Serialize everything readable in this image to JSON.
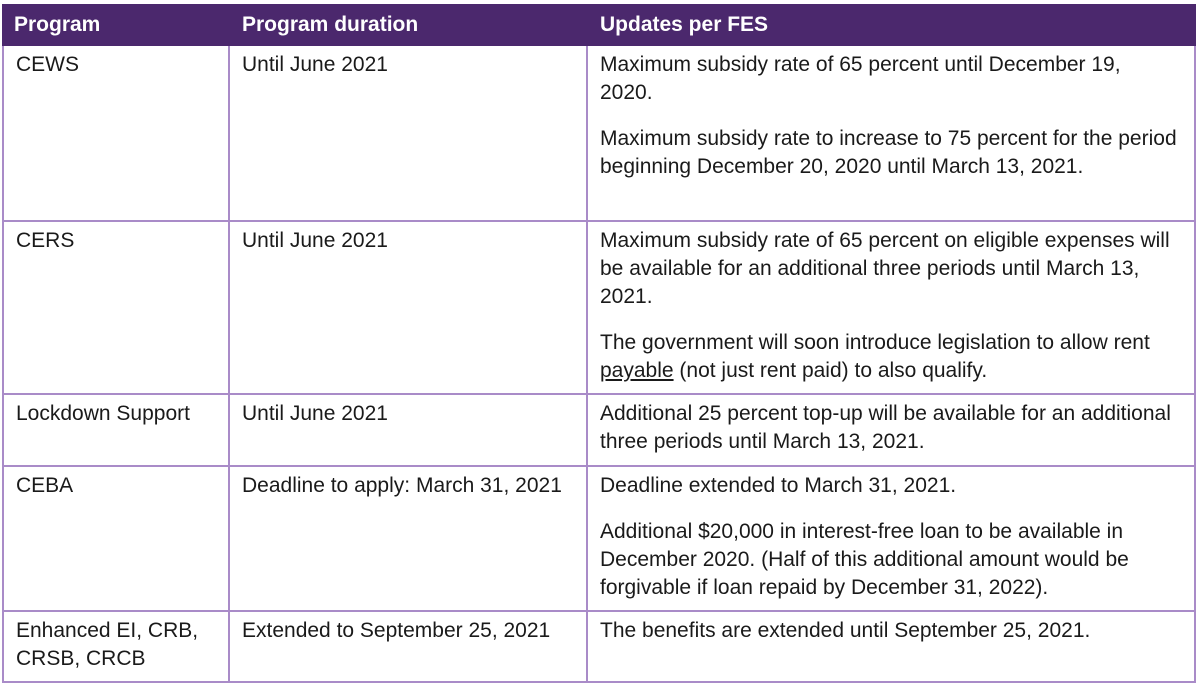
{
  "colors": {
    "header_bg": "#4B286D",
    "header_text": "#FFFFFF",
    "cell_border": "#A98BC8",
    "body_text": "#1A1A1A",
    "background": "#FFFFFF"
  },
  "table": {
    "columns": [
      {
        "label": "Program"
      },
      {
        "label": "Program duration"
      },
      {
        "label": "Updates per FES"
      }
    ],
    "rows": [
      {
        "program": "CEWS",
        "duration": "Until June 2021",
        "updates": [
          [
            {
              "text": "Maximum subsidy rate of 65 percent until December 19, 2020."
            }
          ],
          [
            {
              "text": "Maximum subsidy rate to increase to 75 percent for the period beginning December 20, 2020 until March 13, 2021."
            }
          ]
        ]
      },
      {
        "program": "CERS",
        "duration": "Until June 2021",
        "updates": [
          [
            {
              "text": "Maximum subsidy rate of 65 percent on eligible expenses will be available for an additional three periods until March 13, 2021."
            }
          ],
          [
            {
              "text": "The government will soon introduce legislation to allow rent "
            },
            {
              "text": "payable",
              "underline": true
            },
            {
              "text": " (not just rent paid) to also qualify."
            }
          ]
        ]
      },
      {
        "program": "Lockdown Support",
        "duration": "Until June 2021",
        "updates": [
          [
            {
              "text": "Additional 25 percent top-up will be available for an additional three periods until March 13, 2021."
            }
          ]
        ]
      },
      {
        "program": "CEBA",
        "duration": "Deadline to apply: March 31, 2021",
        "updates": [
          [
            {
              "text": "Deadline extended to March 31, 2021."
            }
          ],
          [
            {
              "text": "Additional $20,000 in interest-free loan to be available in December 2020. (Half of this additional amount would be forgivable if loan repaid by December 31, 2022)."
            }
          ]
        ]
      },
      {
        "program": "Enhanced EI, CRB, CRSB, CRCB",
        "duration": "Extended to September 25, 2021",
        "updates": [
          [
            {
              "text": "The benefits are extended until September 25, 2021."
            }
          ]
        ]
      }
    ]
  }
}
